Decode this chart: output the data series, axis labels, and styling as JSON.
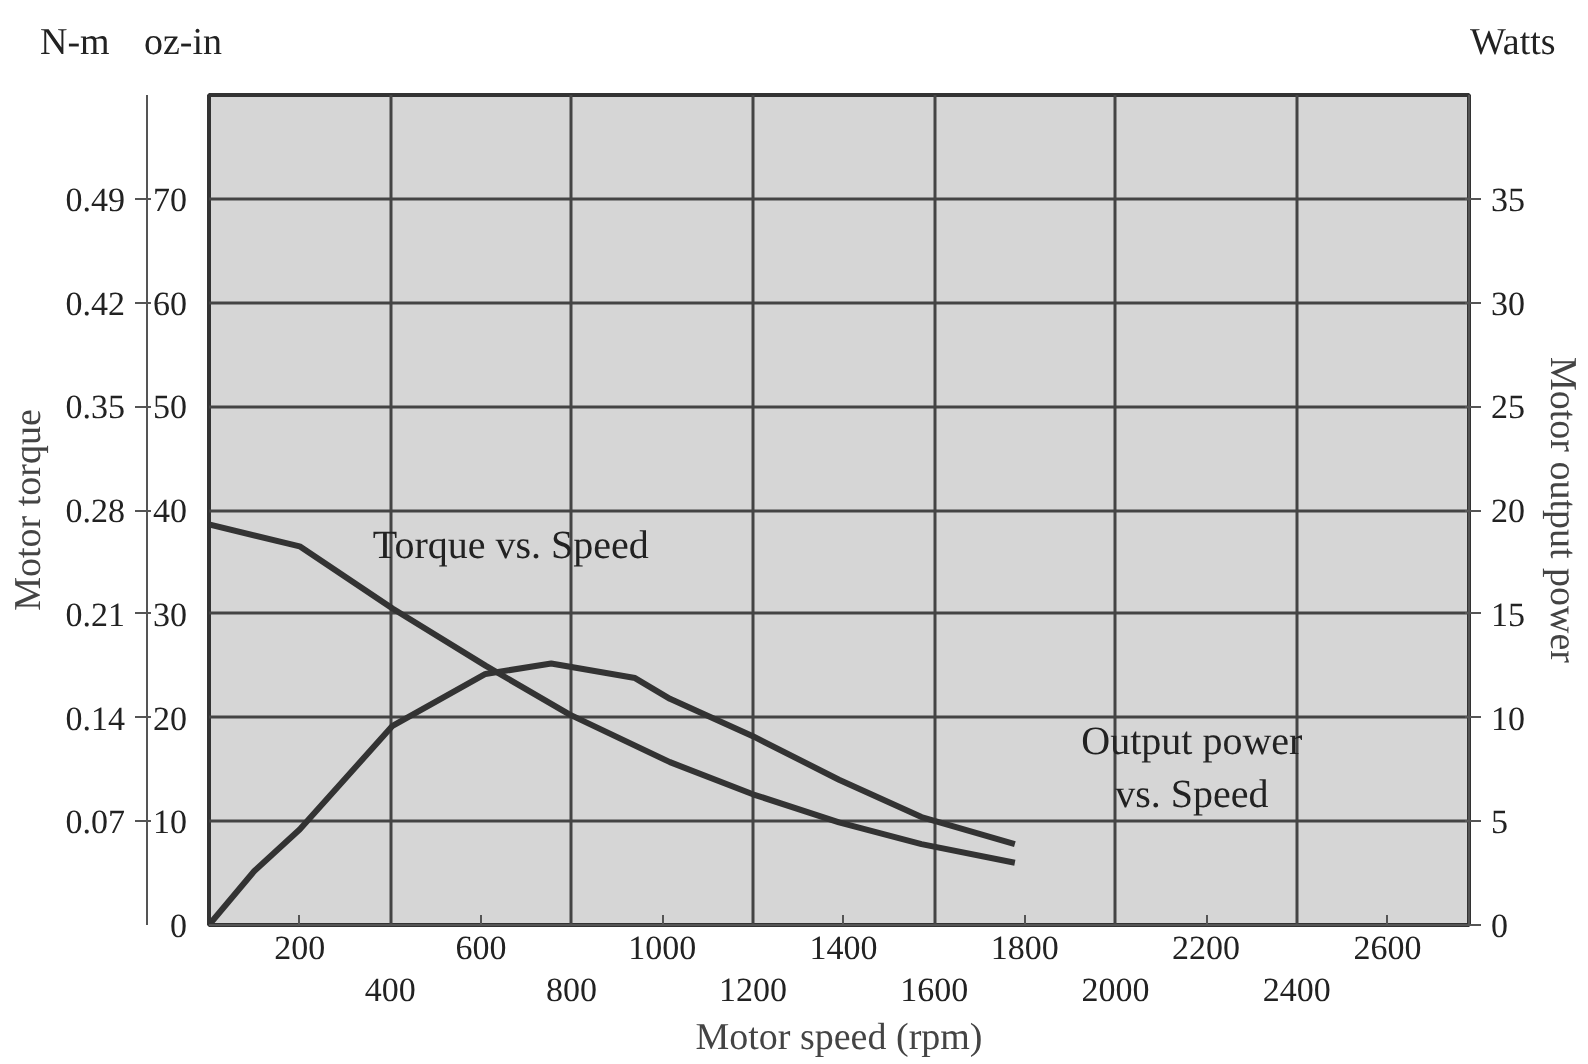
{
  "chart_data": {
    "type": "line",
    "xlabel": "Motor speed (rpm)",
    "ylabel": "Motor torque",
    "y2label": "Motor output power",
    "annotations": [
      "Torque vs. Speed",
      "Output power\nvs. Speed",
      "N-m",
      "oz-in",
      "Watts"
    ],
    "xlim": [
      0,
      2780
    ],
    "xticks": [
      200,
      600,
      1000,
      1400,
      1800,
      2200,
      2600
    ],
    "x2lim": [
      0,
      2780
    ],
    "x2ticks": [
      400,
      800,
      1200,
      1600,
      2000,
      2400
    ],
    "ylim": [
      0,
      80
    ],
    "yticks": [
      0,
      10,
      20,
      30,
      40,
      50,
      60,
      70
    ],
    "y2lim": [
      0,
      40
    ],
    "y2ticks": [
      0,
      5,
      10,
      15,
      20,
      25,
      30,
      35
    ],
    "y3lim": [
      0,
      0.56
    ],
    "y3ticks": [
      0.07,
      0.14,
      0.21,
      0.28,
      0.35,
      0.42,
      0.49
    ],
    "grid": true,
    "line_style": "solid",
    "series": [
      {
        "color": "#333333",
        "x": [
          0,
          200,
          405,
          610,
          795,
          1017,
          1200,
          1390,
          1572,
          1778
        ],
        "values": [
          38.6,
          36.5,
          30.5,
          25,
          20.3,
          15.7,
          12.6,
          9.9,
          7.8,
          6
        ]
      },
      {
        "color": "#333333",
        "axis": "y2",
        "x": [
          0,
          100,
          200,
          405,
          610,
          755,
          940,
          1017,
          1200,
          1390,
          1572,
          1778
        ],
        "values": [
          0,
          2.6,
          4.6,
          9.6,
          12.1,
          12.6,
          11.9,
          10.9,
          9.1,
          7,
          5.2,
          3.9
        ]
      }
    ]
  }
}
